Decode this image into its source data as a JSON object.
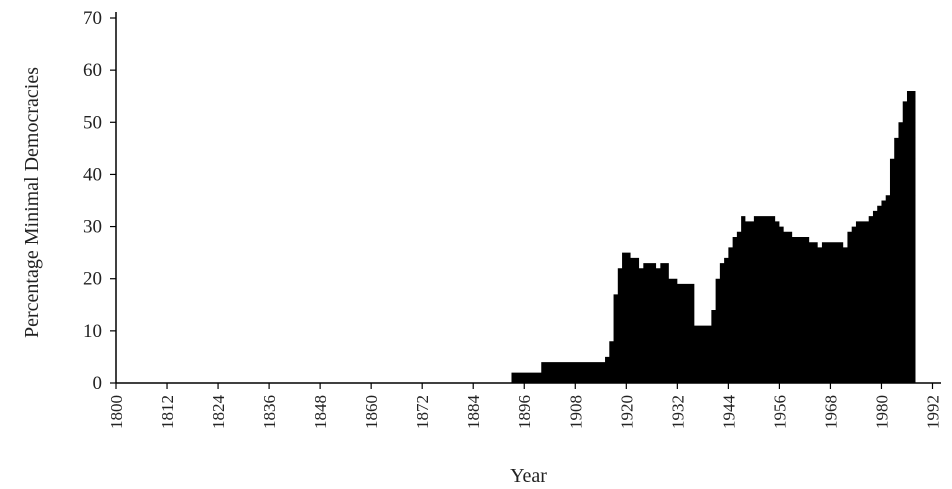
{
  "chart_data": {
    "type": "area",
    "title": "",
    "xlabel": "Year",
    "ylabel": "Percentage Minimal Democracies",
    "xlim": [
      1800,
      1994
    ],
    "ylim": [
      0,
      70
    ],
    "x_ticks": [
      1800,
      1812,
      1824,
      1836,
      1848,
      1860,
      1872,
      1884,
      1896,
      1908,
      1920,
      1932,
      1944,
      1956,
      1968,
      1980,
      1992
    ],
    "y_ticks": [
      0,
      10,
      20,
      30,
      40,
      50,
      60,
      70
    ],
    "grid": false,
    "legend": "none",
    "fill_color": "#000000",
    "series": [
      {
        "x": [
          1800,
          1892,
          1893,
          1899,
          1900,
          1914,
          1915,
          1916,
          1917,
          1918,
          1919,
          1920,
          1921,
          1922,
          1923,
          1924,
          1925,
          1926,
          1927,
          1928,
          1929,
          1930,
          1931,
          1932,
          1933,
          1935,
          1936,
          1937,
          1938,
          1939,
          1940,
          1941,
          1942,
          1943,
          1944,
          1945,
          1946,
          1947,
          1948,
          1949,
          1950,
          1951,
          1952,
          1953,
          1954,
          1955,
          1956,
          1957,
          1958,
          1959,
          1960,
          1961,
          1962,
          1963,
          1964,
          1965,
          1966,
          1967,
          1968,
          1969,
          1970,
          1971,
          1972,
          1973,
          1974,
          1975,
          1976,
          1977,
          1978,
          1979,
          1980,
          1981,
          1982,
          1983,
          1984,
          1985,
          1986,
          1987,
          1988,
          1989,
          1990,
          1991,
          1992,
          1993
        ],
        "values": [
          0,
          0,
          2,
          2,
          4,
          4,
          5,
          8,
          17,
          22,
          25,
          25,
          24,
          24,
          22,
          23,
          23,
          23,
          22,
          23,
          23,
          20,
          20,
          19,
          19,
          19,
          11,
          11,
          11,
          11,
          14,
          20,
          23,
          24,
          26,
          28,
          29,
          32,
          31,
          31,
          32,
          32,
          32,
          32,
          32,
          31,
          30,
          29,
          29,
          28,
          28,
          28,
          28,
          27,
          27,
          26,
          27,
          27,
          27,
          27,
          27,
          26,
          29,
          30,
          31,
          31,
          31,
          32,
          33,
          34,
          35,
          36,
          43,
          47,
          50,
          54,
          56,
          56,
          0,
          0,
          0,
          0,
          0,
          0
        ]
      }
    ]
  }
}
